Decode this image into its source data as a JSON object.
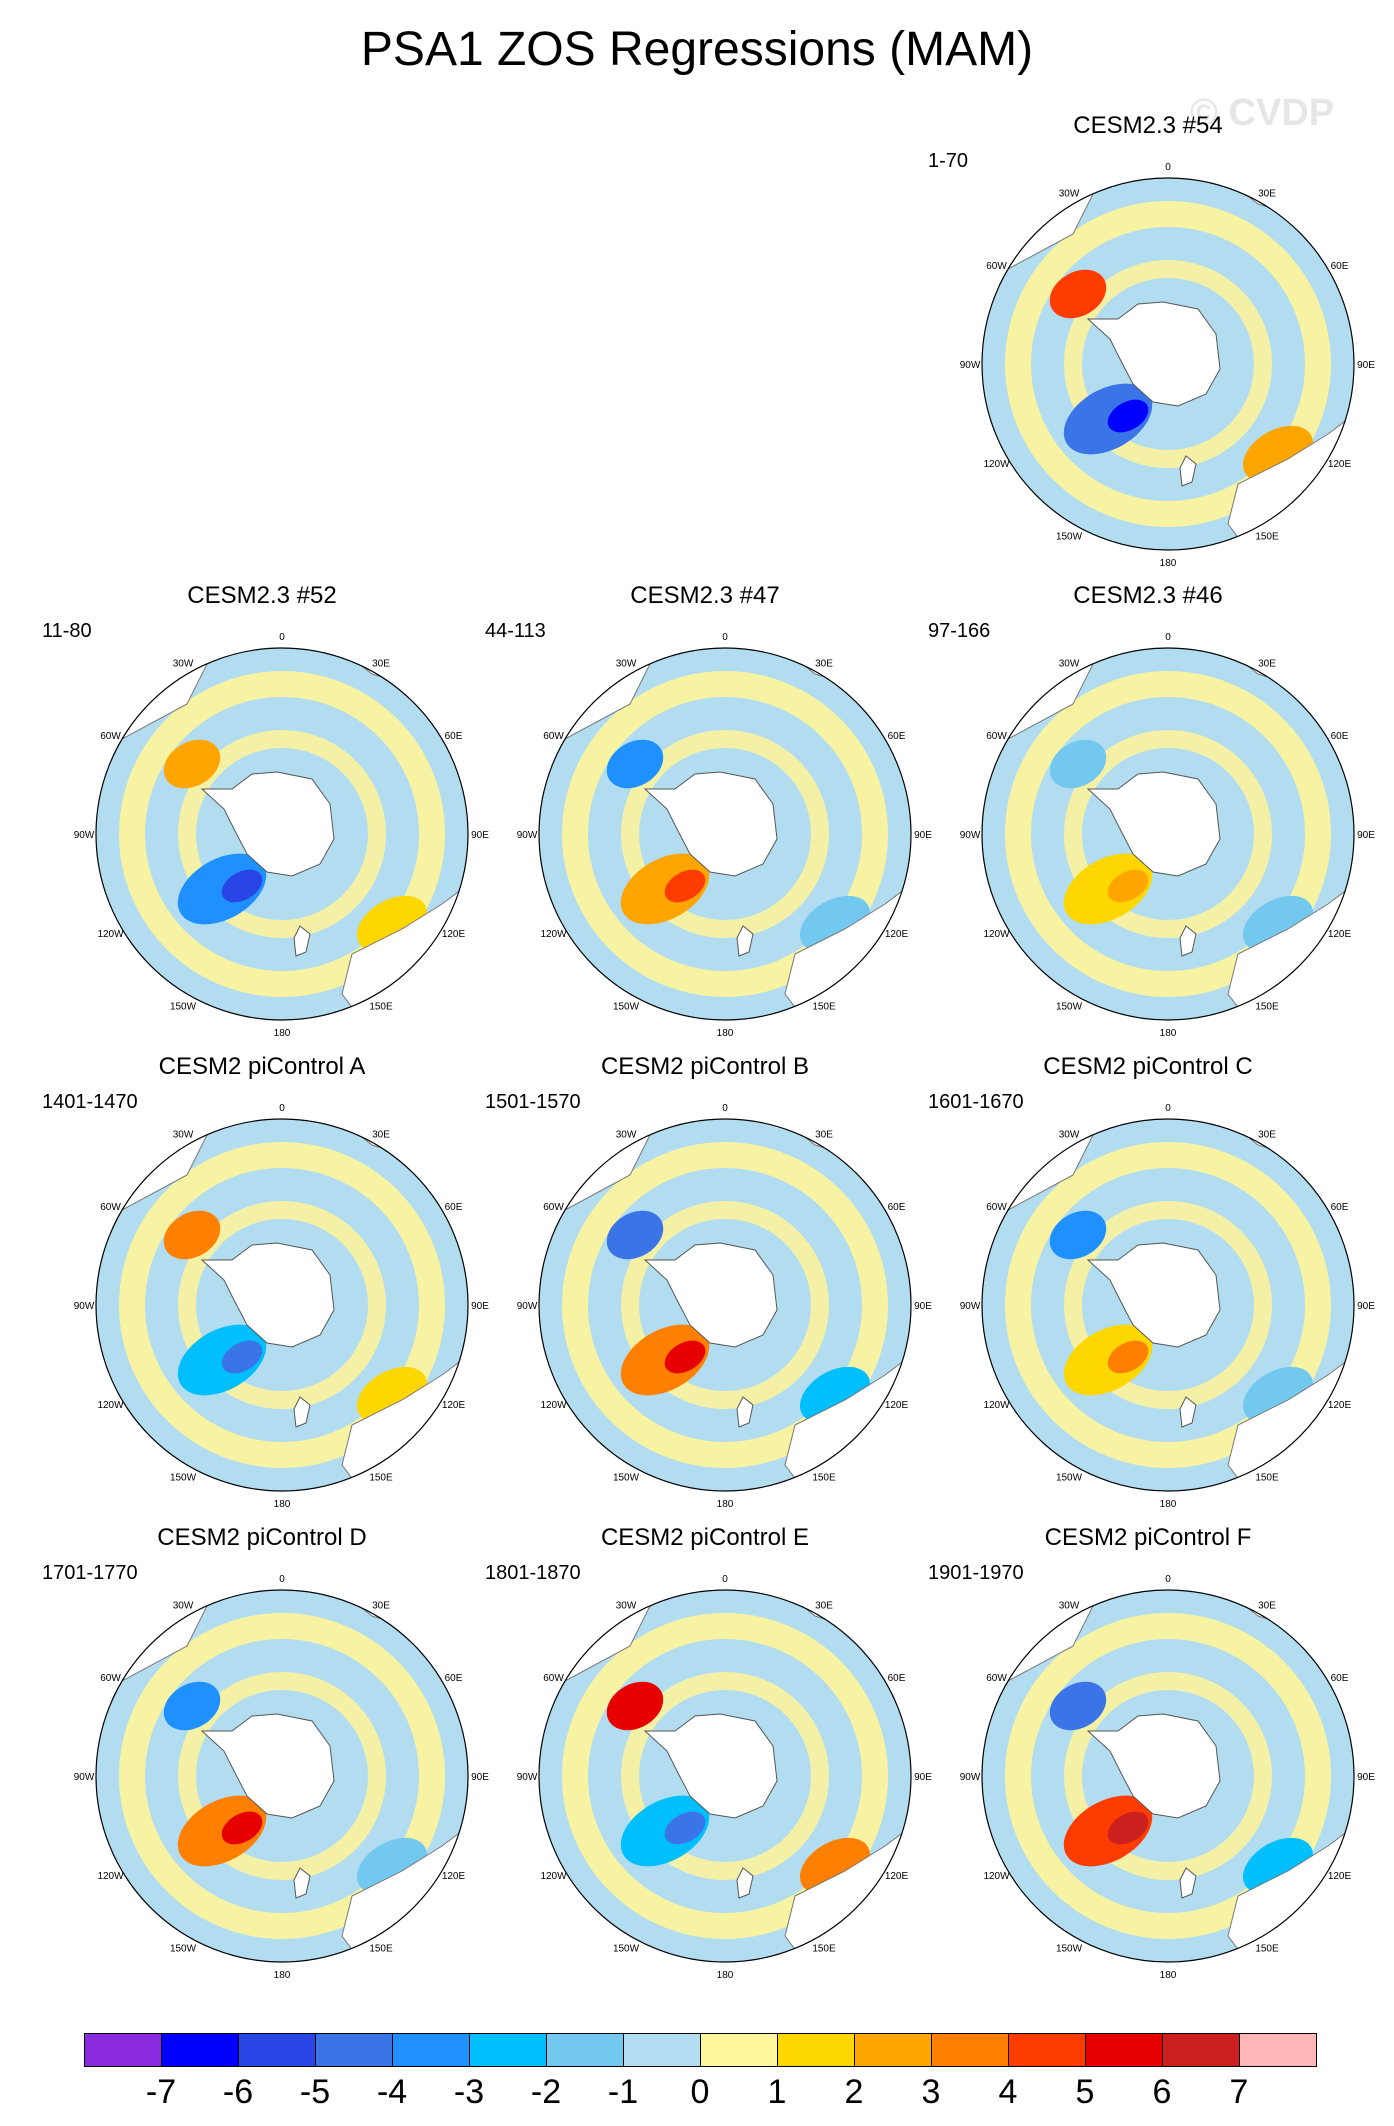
{
  "title": "PSA1 ZOS Regressions (MAM)",
  "watermark": "© CVDP",
  "longitude_labels": [
    "0",
    "30E",
    "60E",
    "90E",
    "120E",
    "150E",
    "180",
    "150W",
    "120W",
    "90W",
    "60W",
    "30W"
  ],
  "panels": [
    {
      "title": "CESM2.3 #54",
      "period": "1-70",
      "anomalies": [
        {
          "kind": "neg",
          "level": 6
        },
        {
          "kind": "pos",
          "level": 4
        }
      ]
    },
    {
      "title": "CESM2.3 #52",
      "period": "11-80",
      "anomalies": [
        {
          "kind": "neg",
          "level": 5
        },
        {
          "kind": "pos",
          "level": 2
        }
      ]
    },
    {
      "title": "CESM2.3 #47",
      "period": "44-113",
      "anomalies": [
        {
          "kind": "pos",
          "level": 4
        },
        {
          "kind": "neg",
          "level": 3
        }
      ]
    },
    {
      "title": "CESM2.3 #46",
      "period": "97-166",
      "anomalies": [
        {
          "kind": "pos",
          "level": 2
        },
        {
          "kind": "neg",
          "level": 1
        }
      ]
    },
    {
      "title": "CESM2 piControl A",
      "period": "1401-1470",
      "anomalies": [
        {
          "kind": "neg",
          "level": 4
        },
        {
          "kind": "pos",
          "level": 3
        }
      ]
    },
    {
      "title": "CESM2 piControl B",
      "period": "1501-1570",
      "anomalies": [
        {
          "kind": "pos",
          "level": 5
        },
        {
          "kind": "neg",
          "level": 4
        }
      ]
    },
    {
      "title": "CESM2 piControl C",
      "period": "1601-1670",
      "anomalies": [
        {
          "kind": "pos",
          "level": 3
        },
        {
          "kind": "neg",
          "level": 3
        }
      ]
    },
    {
      "title": "CESM2 piControl D",
      "period": "1701-1770",
      "anomalies": [
        {
          "kind": "pos",
          "level": 5
        },
        {
          "kind": "neg",
          "level": 3
        }
      ]
    },
    {
      "title": "CESM2 piControl E",
      "period": "1801-1870",
      "anomalies": [
        {
          "kind": "neg",
          "level": 4
        },
        {
          "kind": "pos",
          "level": 5
        }
      ]
    },
    {
      "title": "CESM2 piControl F",
      "period": "1901-1970",
      "anomalies": [
        {
          "kind": "pos",
          "level": 6
        },
        {
          "kind": "neg",
          "level": 4
        }
      ]
    }
  ],
  "colorbar": {
    "labels": [
      "-7",
      "-6",
      "-5",
      "-4",
      "-3",
      "-2",
      "-1",
      "0",
      "1",
      "2",
      "3",
      "4",
      "5",
      "6",
      "7"
    ],
    "colors": [
      "#8a2be2",
      "#0000ff",
      "#2a45e6",
      "#3a74e6",
      "#1e90ff",
      "#00bfff",
      "#73c8f0",
      "#b2dcf0",
      "#fff59a",
      "#ffd700",
      "#ffa500",
      "#ff7f00",
      "#ff3c00",
      "#e60000",
      "#cc1f1f",
      "#ffb6b6"
    ]
  }
}
